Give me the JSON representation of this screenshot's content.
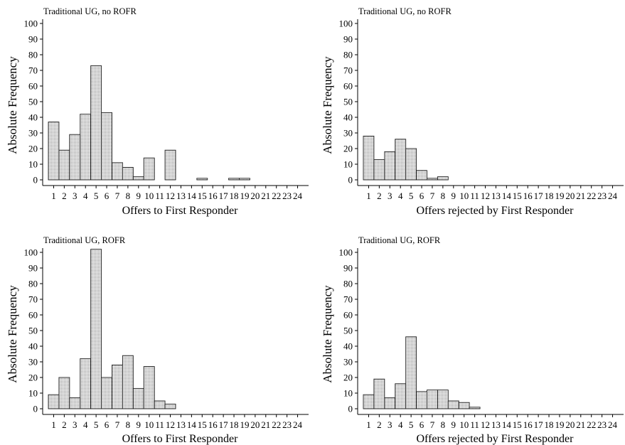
{
  "chart_data": [
    {
      "type": "bar",
      "title": "Traditional UG, no ROFR",
      "xlabel": "Offers to First Responder",
      "ylabel": "Absolute Frequency",
      "categories": [
        "1",
        "2",
        "3",
        "4",
        "5",
        "6",
        "7",
        "8",
        "9",
        "10",
        "11",
        "12",
        "13",
        "14",
        "15",
        "16",
        "17",
        "18",
        "19",
        "20",
        "21",
        "22",
        "23",
        "24"
      ],
      "values": [
        37,
        19,
        29,
        42,
        73,
        43,
        11,
        8,
        2,
        14,
        0,
        19,
        0,
        0,
        1,
        0,
        0,
        1,
        1,
        0,
        0,
        0,
        0,
        0
      ],
      "ylim": [
        0,
        100
      ],
      "yticks": [
        0,
        10,
        20,
        30,
        40,
        50,
        60,
        70,
        80,
        90,
        100
      ],
      "grid": false
    },
    {
      "type": "bar",
      "title": "Traditional UG, no ROFR",
      "xlabel": "Offers rejected by First Responder",
      "ylabel": "Absolute Frequency",
      "categories": [
        "1",
        "2",
        "3",
        "4",
        "5",
        "6",
        "7",
        "8",
        "9",
        "10",
        "11",
        "12",
        "13",
        "14",
        "15",
        "16",
        "17",
        "18",
        "19",
        "20",
        "21",
        "22",
        "23",
        "24"
      ],
      "values": [
        28,
        13,
        18,
        26,
        20,
        6,
        1,
        2,
        0,
        0,
        0,
        0,
        0,
        0,
        0,
        0,
        0,
        0,
        0,
        0,
        0,
        0,
        0,
        0
      ],
      "ylim": [
        0,
        100
      ],
      "yticks": [
        0,
        10,
        20,
        30,
        40,
        50,
        60,
        70,
        80,
        90,
        100
      ],
      "grid": false
    },
    {
      "type": "bar",
      "title": "Traditional UG, ROFR",
      "xlabel": "Offers to First Responder",
      "ylabel": "Absolute Frequency",
      "categories": [
        "1",
        "2",
        "3",
        "4",
        "5",
        "6",
        "7",
        "8",
        "9",
        "10",
        "11",
        "12",
        "13",
        "14",
        "15",
        "16",
        "17",
        "18",
        "19",
        "20",
        "21",
        "22",
        "23",
        "24"
      ],
      "values": [
        9,
        20,
        7,
        32,
        102,
        20,
        28,
        34,
        13,
        27,
        5,
        3,
        0,
        0,
        0,
        0,
        0,
        0,
        0,
        0,
        0,
        0,
        0,
        0
      ],
      "ylim": [
        0,
        100
      ],
      "yticks": [
        0,
        10,
        20,
        30,
        40,
        50,
        60,
        70,
        80,
        90,
        100
      ],
      "grid": false
    },
    {
      "type": "bar",
      "title": "Traditional UG, ROFR",
      "xlabel": "Offers rejected by First Responder",
      "ylabel": "Absolute Frequency",
      "categories": [
        "1",
        "2",
        "3",
        "4",
        "5",
        "6",
        "7",
        "8",
        "9",
        "10",
        "11",
        "12",
        "13",
        "14",
        "15",
        "16",
        "17",
        "18",
        "19",
        "20",
        "21",
        "22",
        "23",
        "24"
      ],
      "values": [
        9,
        19,
        7,
        16,
        46,
        11,
        12,
        12,
        5,
        4,
        1,
        0,
        0,
        0,
        0,
        0,
        0,
        0,
        0,
        0,
        0,
        0,
        0,
        0
      ],
      "ylim": [
        0,
        100
      ],
      "yticks": [
        0,
        10,
        20,
        30,
        40,
        50,
        60,
        70,
        80,
        90,
        100
      ],
      "grid": false
    }
  ],
  "colors": {
    "bar_fill": "#e6e6e6",
    "bar_dots": "#8c8c8c",
    "axis": "#000000"
  }
}
